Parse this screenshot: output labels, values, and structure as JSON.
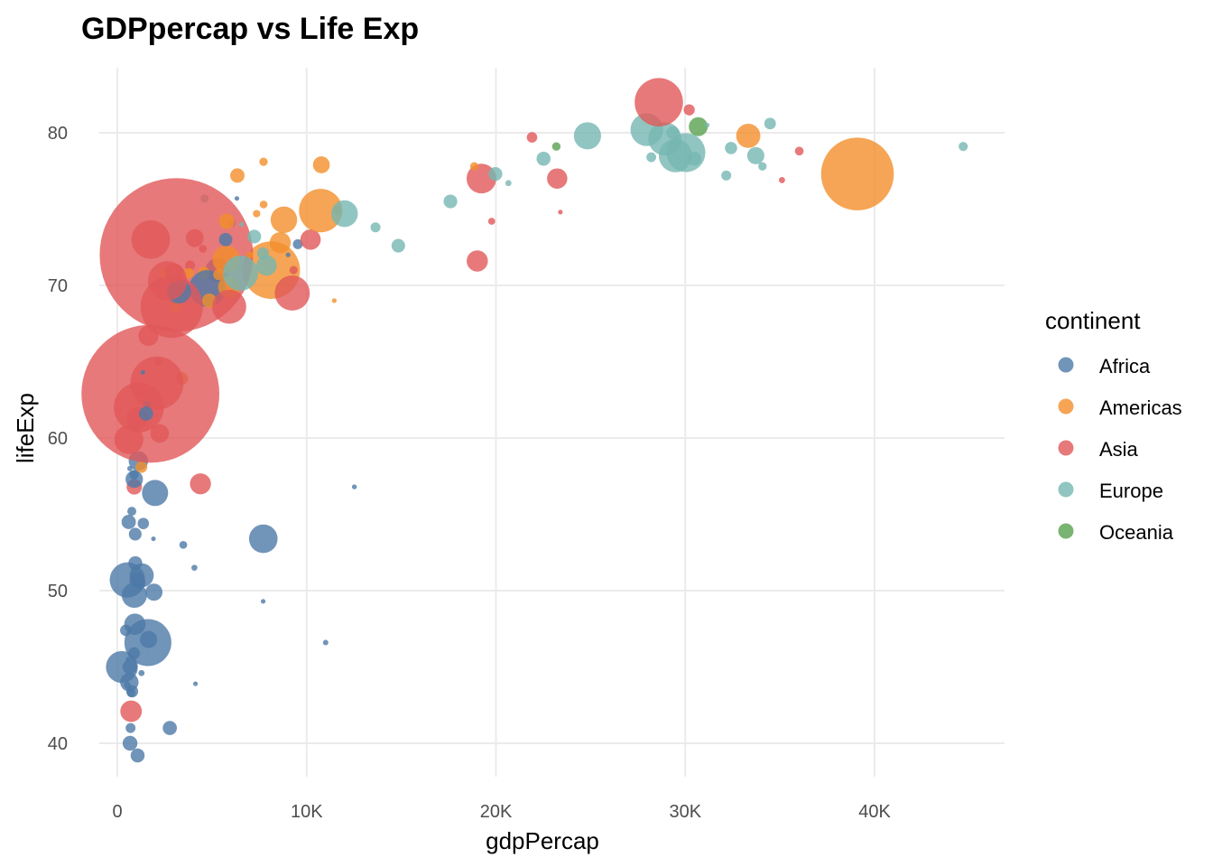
{
  "chart_data": {
    "type": "scatter",
    "title": "GDPpercap vs Life Exp",
    "xlabel": "gdpPercap",
    "ylabel": "lifeExp",
    "xlim": [
      0,
      45000
    ],
    "ylim": [
      38,
      84
    ],
    "x_ticks": [
      0,
      10000,
      20000,
      30000,
      40000
    ],
    "x_tick_labels": [
      "0",
      "10K",
      "20K",
      "30K",
      "40K"
    ],
    "y_ticks": [
      40,
      50,
      60,
      70,
      80
    ],
    "y_tick_labels": [
      "40",
      "50",
      "60",
      "70",
      "80"
    ],
    "grid": true,
    "legend": {
      "title": "continent",
      "position": "right",
      "entries": [
        "Africa",
        "Americas",
        "Asia",
        "Europe",
        "Oceania"
      ]
    },
    "colors": {
      "Africa": "#4e79a7",
      "Americas": "#f28e2b",
      "Asia": "#e15759",
      "Europe": "#76b7b2",
      "Oceania": "#59a14f"
    },
    "size_variable": "pop",
    "point_columns": [
      "continent",
      "gdpPercap",
      "lifeExp",
      "pop_millions"
    ],
    "points": [
      [
        "Asia",
        727,
        42.1,
        25.27
      ],
      [
        "Europe",
        4604,
        75.7,
        3.51
      ],
      [
        "Africa",
        5288,
        71.0,
        31.29
      ],
      [
        "Africa",
        2773,
        41.0,
        10.87
      ],
      [
        "Americas",
        8798,
        74.3,
        38.33
      ],
      [
        "Oceania",
        30688,
        80.4,
        19.55
      ],
      [
        "Europe",
        32418,
        79.0,
        8.15
      ],
      [
        "Asia",
        23404,
        74.8,
        0.66
      ],
      [
        "Asia",
        1136,
        62.0,
        135.66
      ],
      [
        "Europe",
        30486,
        78.3,
        10.31
      ],
      [
        "Africa",
        1373,
        54.4,
        7.03
      ],
      [
        "Americas",
        3413,
        63.9,
        8.45
      ],
      [
        "Europe",
        6019,
        74.1,
        4.17
      ],
      [
        "Africa",
        11004,
        46.6,
        1.63
      ],
      [
        "Americas",
        8131,
        71.0,
        179.9
      ],
      [
        "Europe",
        7697,
        72.1,
        7.66
      ],
      [
        "Africa",
        1038,
        50.7,
        12.25
      ],
      [
        "Africa",
        446,
        47.4,
        7.02
      ],
      [
        "Asia",
        896,
        56.8,
        12.93
      ],
      [
        "Africa",
        1934,
        49.9,
        15.93
      ],
      [
        "Americas",
        33329,
        79.8,
        31.9
      ],
      [
        "Africa",
        738,
        43.3,
        4.05
      ],
      [
        "Africa",
        1156,
        50.5,
        8.84
      ],
      [
        "Americas",
        10779,
        77.9,
        15.5
      ],
      [
        "Asia",
        3119,
        72.0,
        1280.4
      ],
      [
        "Americas",
        5755,
        71.7,
        41.0
      ],
      [
        "Africa",
        1076,
        63.0,
        0.61
      ],
      [
        "Africa",
        241,
        45.0,
        55.38
      ],
      [
        "Africa",
        3484,
        53.0,
        3.33
      ],
      [
        "Americas",
        7723,
        78.1,
        3.83
      ],
      [
        "Africa",
        1648,
        46.8,
        16.25
      ],
      [
        "Europe",
        11628,
        74.9,
        4.48
      ],
      [
        "Americas",
        6341,
        77.2,
        11.23
      ],
      [
        "Europe",
        17596,
        75.5,
        10.26
      ],
      [
        "Europe",
        32167,
        77.2,
        5.37
      ],
      [
        "Africa",
        1908,
        53.4,
        0.45
      ],
      [
        "Americas",
        4564,
        70.8,
        8.65
      ],
      [
        "Americas",
        5773,
        74.2,
        12.92
      ],
      [
        "Africa",
        4755,
        69.8,
        73.31
      ],
      [
        "Americas",
        5352,
        70.7,
        6.35
      ],
      [
        "Africa",
        7703,
        49.3,
        0.5
      ],
      [
        "Africa",
        765,
        55.2,
        4.41
      ],
      [
        "Africa",
        531,
        50.7,
        67.95
      ],
      [
        "Europe",
        28205,
        78.4,
        5.19
      ],
      [
        "Europe",
        28926,
        79.6,
        59.93
      ],
      [
        "Africa",
        12522,
        56.8,
        1.3
      ],
      [
        "Africa",
        660,
        58.0,
        1.46
      ],
      [
        "Europe",
        30036,
        78.7,
        82.35
      ],
      [
        "Africa",
        1112,
        58.5,
        20.55
      ],
      [
        "Europe",
        22514,
        78.3,
        10.6
      ],
      [
        "Americas",
        4858,
        69.0,
        11.18
      ],
      [
        "Africa",
        945,
        53.7,
        8.81
      ],
      [
        "Africa",
        575,
        45.5,
        1.33
      ],
      [
        "Americas",
        1270,
        58.1,
        7.6
      ],
      [
        "Americas",
        3099,
        68.6,
        6.68
      ],
      [
        "Asia",
        30209,
        81.5,
        6.76
      ],
      [
        "Europe",
        14843,
        72.6,
        10.08
      ],
      [
        "Europe",
        31163,
        80.5,
        0.29
      ],
      [
        "Asia",
        1747,
        62.9,
        1034.17
      ],
      [
        "Asia",
        2874,
        68.6,
        211.06
      ],
      [
        "Asia",
        9241,
        69.5,
        66.91
      ],
      [
        "Asia",
        4391,
        57.0,
        24.0
      ],
      [
        "Europe",
        34077,
        77.8,
        3.88
      ],
      [
        "Asia",
        21906,
        79.7,
        6.03
      ],
      [
        "Europe",
        27968,
        80.2,
        57.93
      ],
      [
        "Americas",
        6995,
        72.0,
        2.66
      ],
      [
        "Asia",
        28605,
        82.0,
        127.07
      ],
      [
        "Asia",
        3845,
        71.3,
        5.31
      ],
      [
        "Africa",
        1288,
        51.0,
        31.39
      ],
      [
        "Asia",
        1647,
        66.7,
        22.22
      ],
      [
        "Asia",
        19234,
        77.0,
        47.97
      ],
      [
        "Asia",
        35110,
        76.9,
        2.11
      ],
      [
        "Asia",
        9313,
        71.0,
        3.68
      ],
      [
        "Africa",
        1275,
        44.6,
        2.05
      ],
      [
        "Africa",
        531,
        43.8,
        2.81
      ],
      [
        "Africa",
        9535,
        72.7,
        5.37
      ],
      [
        "Africa",
        894,
        57.3,
        16.47
      ],
      [
        "Africa",
        665,
        45.0,
        11.82
      ],
      [
        "Asia",
        10207,
        73.0,
        22.66
      ],
      [
        "Africa",
        952,
        51.8,
        10.58
      ],
      [
        "Africa",
        1579,
        62.2,
        2.83
      ],
      [
        "Africa",
        9022,
        72.0,
        1.2
      ],
      [
        "Americas",
        10742,
        74.9,
        102.5
      ],
      [
        "Asia",
        2140,
        65.0,
        2.67
      ],
      [
        "Europe",
        6557,
        74.0,
        0.72
      ],
      [
        "Africa",
        3258,
        69.6,
        31.17
      ],
      [
        "Africa",
        634,
        44.0,
        18.47
      ],
      [
        "Asia",
        611,
        59.9,
        45.6
      ],
      [
        "Africa",
        4072,
        51.5,
        1.97
      ],
      [
        "Asia",
        1057,
        61.3,
        25.87
      ],
      [
        "Europe",
        33725,
        78.5,
        16.12
      ],
      [
        "Oceania",
        23190,
        79.1,
        3.91
      ],
      [
        "Americas",
        2474,
        70.8,
        5.15
      ],
      [
        "Africa",
        601,
        54.5,
        11.14
      ],
      [
        "Africa",
        1615,
        46.6,
        119.9
      ],
      [
        "Europe",
        44684,
        79.1,
        4.54
      ],
      [
        "Asia",
        19775,
        74.2,
        2.71
      ],
      [
        "Asia",
        2093,
        63.6,
        153.4
      ],
      [
        "Americas",
        7357,
        74.7,
        2.99
      ],
      [
        "Americas",
        3784,
        70.8,
        5.88
      ],
      [
        "Americas",
        5909,
        69.9,
        26.77
      ],
      [
        "Asia",
        2651,
        70.3,
        82.99
      ],
      [
        "Europe",
        12002,
        74.7,
        38.63
      ],
      [
        "Europe",
        19971,
        77.3,
        10.43
      ],
      [
        "Americas",
        18856,
        77.8,
        3.86
      ],
      [
        "Africa",
        6316,
        75.7,
        0.74
      ],
      [
        "Europe",
        7885,
        71.3,
        22.4
      ],
      [
        "Africa",
        786,
        43.4,
        7.85
      ],
      [
        "Africa",
        1353,
        64.3,
        0.17
      ],
      [
        "Asia",
        19014,
        71.6,
        24.5
      ],
      [
        "Africa",
        1519,
        61.6,
        10.87
      ],
      [
        "Europe",
        7236,
        73.2,
        10.11
      ],
      [
        "Africa",
        699,
        41.0,
        5.36
      ],
      [
        "Asia",
        36023,
        78.8,
        4.2
      ],
      [
        "Europe",
        13639,
        73.8,
        5.41
      ],
      [
        "Europe",
        20660,
        76.7,
        2.01
      ],
      [
        "Africa",
        882,
        45.9,
        7.75
      ],
      [
        "Africa",
        7711,
        53.4,
        44.43
      ],
      [
        "Europe",
        24835,
        79.8,
        40.15
      ],
      [
        "Asia",
        3015,
        70.8,
        19.58
      ],
      [
        "Africa",
        1993,
        56.4,
        37.09
      ],
      [
        "Africa",
        4128,
        43.9,
        1.13
      ],
      [
        "Europe",
        29342,
        80.0,
        8.95
      ],
      [
        "Europe",
        34481,
        80.6,
        7.36
      ],
      [
        "Asia",
        4090,
        73.1,
        17.16
      ],
      [
        "Asia",
        23235,
        77.0,
        22.45
      ],
      [
        "Africa",
        899,
        49.7,
        34.59
      ],
      [
        "Asia",
        5913,
        68.6,
        62.81
      ],
      [
        "Africa",
        886,
        57.6,
        4.98
      ],
      [
        "Americas",
        11461,
        69.0,
        1.1
      ],
      [
        "Africa",
        5723,
        73.0,
        9.77
      ],
      [
        "Europe",
        6508,
        70.8,
        67.31
      ],
      [
        "Africa",
        928,
        47.8,
        24.74
      ],
      [
        "Europe",
        29479,
        78.5,
        59.91
      ],
      [
        "Americas",
        39097,
        77.3,
        287.68
      ],
      [
        "Americas",
        7727,
        75.3,
        3.36
      ],
      [
        "Americas",
        8605,
        72.8,
        24.29
      ],
      [
        "Asia",
        1764,
        73.0,
        80.9
      ],
      [
        "Asia",
        4515,
        72.4,
        3.39
      ],
      [
        "Asia",
        2235,
        60.3,
        18.7
      ],
      [
        "Africa",
        1072,
        39.2,
        10.6
      ],
      [
        "Africa",
        672,
        40.0,
        11.93
      ]
    ]
  }
}
